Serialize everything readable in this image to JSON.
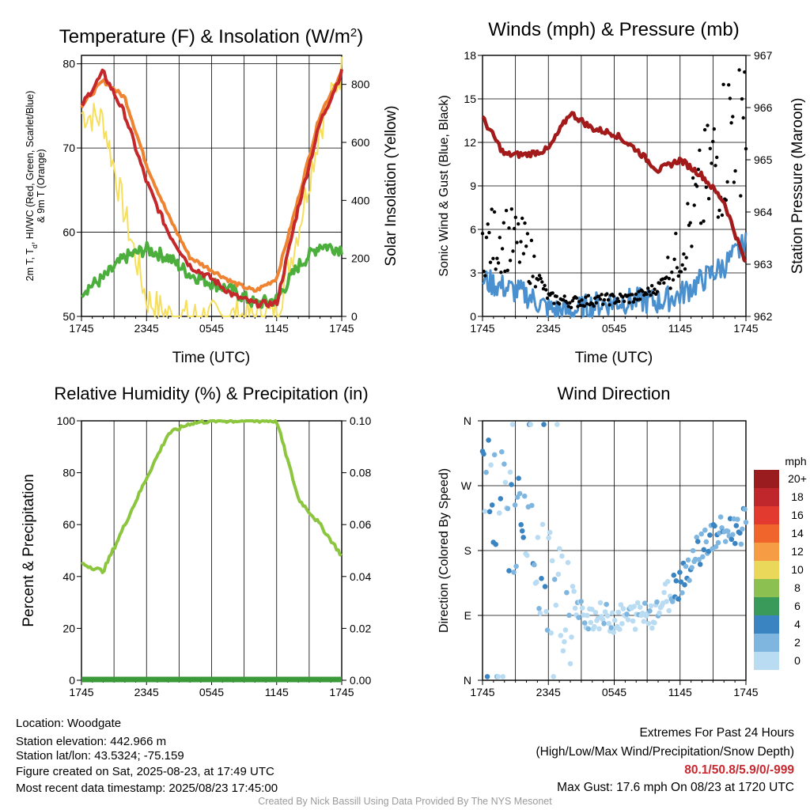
{
  "colors": {
    "red": "#c4282b",
    "green": "#2e8b2e",
    "lightgreen": "#4cae3c",
    "orange": "#ee8332",
    "yellow": "#f5df5d",
    "blue": "#4a90cf",
    "maroon": "#a31a1a",
    "black": "#000000",
    "precip": "#3a9a3a",
    "rh": "#8cc63f",
    "extremes": "#c8282e"
  },
  "charts": [
    {
      "id": "temperature",
      "title": "Temperature (F) & Insolation (W/m",
      "title_sup": "2",
      "title_tail": ")",
      "ylabel_left_line1": "2m T, T",
      "ylabel_left_sub1": "d",
      "ylabel_left_line1b": ", HI/WC (Red, Green, Scarlet/Blue)",
      "ylabel_left_line2": "& 9m T (Orange)",
      "ylabel_right": "Solar Insolation (Yellow)",
      "xlabel": "Time (UTC)",
      "xticks": [
        "1745",
        "2345",
        "0545",
        "1145",
        "1745"
      ],
      "yticks_left": [
        "50",
        "60",
        "70",
        "80"
      ],
      "yticks_right": [
        "0",
        "200",
        "400",
        "600",
        "800"
      ]
    },
    {
      "id": "winds",
      "title": "Winds (mph) & Pressure (mb)",
      "ylabel_left": "Sonic Wind & Gust (Blue, Black)",
      "ylabel_right": "Station Pressure (Maroon)",
      "xlabel": "Time (UTC)",
      "xticks": [
        "1745",
        "2345",
        "0545",
        "1145",
        "1745"
      ],
      "yticks_left": [
        "0",
        "3",
        "6",
        "9",
        "12",
        "15",
        "18"
      ],
      "yticks_right": [
        "962",
        "963",
        "964",
        "965",
        "966",
        "967"
      ]
    },
    {
      "id": "humidity",
      "title": "Relative Humidity (%) & Precipitation (in)",
      "ylabel_left": "Percent & Precipitation",
      "xticks": [
        "1745",
        "2345",
        "0545",
        "1145",
        "1745"
      ],
      "yticks_left": [
        "0",
        "20",
        "40",
        "60",
        "80",
        "100"
      ],
      "yticks_right": [
        "0.00",
        "0.02",
        "0.04",
        "0.06",
        "0.08",
        "0.10"
      ]
    },
    {
      "id": "direction",
      "title": "Wind Direction",
      "ylabel_left": "Direction (Colored By Speed)",
      "xticks": [
        "1745",
        "2345",
        "0545",
        "1145",
        "1745"
      ],
      "yticks_left": [
        "N",
        "E",
        "S",
        "W",
        "N"
      ],
      "legend_title": "mph",
      "legend_labels": [
        "20+",
        "18",
        "16",
        "14",
        "12",
        "10",
        "8",
        "6",
        "4",
        "2",
        "0"
      ],
      "legend_colors": [
        "#9b1c1f",
        "#c0272d",
        "#e23a2f",
        "#f0652b",
        "#f59c44",
        "#e9d85a",
        "#8cc152",
        "#3a9a5a",
        "#3a84c2",
        "#7fb6e0",
        "#b9dcf2"
      ]
    }
  ],
  "chart_data": [
    {
      "type": "line",
      "title": "Temperature (F) & Insolation (W/m2)",
      "x": [
        "1745",
        "1945",
        "2145",
        "2345",
        "0145",
        "0345",
        "0545",
        "0745",
        "0945",
        "1145",
        "1345",
        "1545",
        "1745"
      ],
      "ylim": [
        50,
        81
      ],
      "y2lim": [
        0,
        900
      ],
      "series": [
        {
          "color": "#c4282b",
          "axis": "left",
          "values": [
            75,
            79,
            74,
            66,
            60,
            56,
            54.5,
            52.5,
            51.5,
            51.5,
            63,
            73,
            79
          ]
        },
        {
          "color": "#ee8332",
          "axis": "left",
          "values": [
            75,
            78,
            76,
            68,
            62,
            57,
            55.5,
            54,
            53,
            54.5,
            64,
            74,
            79
          ]
        },
        {
          "color": "#2e8b2e",
          "axis": "left",
          "values": [
            53,
            54.5,
            57,
            58,
            57,
            55,
            54,
            53,
            51.5,
            52,
            56,
            58.5,
            58
          ]
        },
        {
          "color": "#f5df5d",
          "axis": "right",
          "values": [
            700,
            680,
            350,
            60,
            5,
            0,
            0,
            0,
            0,
            10,
            300,
            650,
            850
          ]
        }
      ]
    },
    {
      "type": "line",
      "title": "Winds (mph) & Pressure (mb)",
      "x": [
        "1745",
        "1945",
        "2145",
        "2345",
        "0145",
        "0345",
        "0545",
        "0745",
        "0945",
        "1145",
        "1345",
        "1545",
        "1745"
      ],
      "ylim": [
        0,
        18
      ],
      "y2lim": [
        962,
        967
      ],
      "series": [
        {
          "color": "#4a90cf",
          "axis": "left",
          "values": [
            2.5,
            2.0,
            1.5,
            0.5,
            0.3,
            0.8,
            1.0,
            1.1,
            1.0,
            1.5,
            2.5,
            3.5,
            5.0
          ]
        },
        {
          "color": "#000000",
          "axis": "left",
          "values": [
            5,
            5.5,
            4.5,
            1.3,
            1.0,
            1.1,
            1.2,
            1.3,
            2.0,
            4.5,
            8.5,
            12,
            16
          ]
        },
        {
          "color": "#a31a1a",
          "axis": "right",
          "values": [
            965.8,
            965.1,
            965.1,
            965.2,
            965.9,
            965.6,
            965.5,
            965.2,
            964.8,
            965.0,
            964.7,
            964.2,
            963.0
          ]
        }
      ]
    },
    {
      "type": "line",
      "title": "Relative Humidity (%) & Precipitation (in)",
      "x": [
        "1745",
        "1945",
        "2145",
        "2345",
        "0145",
        "0345",
        "0545",
        "0745",
        "0945",
        "1145",
        "1345",
        "1545",
        "1745"
      ],
      "ylim": [
        0,
        100
      ],
      "y2lim": [
        0,
        0.1
      ],
      "series": [
        {
          "color": "#8cc63f",
          "axis": "left",
          "values": [
            45,
            42,
            60,
            78,
            95,
            99,
            100,
            100,
            100,
            100,
            70,
            60,
            48
          ]
        },
        {
          "color": "#3a9a3a",
          "axis": "right",
          "values": [
            0,
            0,
            0,
            0,
            0,
            0,
            0,
            0,
            0,
            0,
            0,
            0,
            0
          ]
        }
      ]
    },
    {
      "type": "scatter",
      "title": "Wind Direction",
      "x": [
        "1745",
        "1945",
        "2145",
        "2345",
        "0145",
        "0345",
        "0545",
        "0745",
        "0945",
        "1145",
        "1345",
        "1545",
        "1745"
      ],
      "ylim": [
        "N",
        "N"
      ],
      "series": [
        {
          "values": [
            300,
            240,
            200,
            130,
            95,
            90,
            85,
            90,
            100,
            140,
            190,
            205,
            215
          ]
        }
      ]
    }
  ],
  "footer": {
    "location": "Location: Woodgate",
    "elevation": "Station elevation: 442.966 m",
    "latlon": "Station lat/lon: 43.5324; -75.159",
    "created": "Figure created on Sat, 2025-08-23, at 17:49 UTC",
    "recent": "Most recent data timestamp: 2025/08/23 17:45:00",
    "extremes_title": "Extremes For Past 24 Hours",
    "extremes_desc": "(High/Low/Max Wind/Precipitation/Snow Depth)",
    "extremes_values": "80.1/50.8/5.9/0/-999",
    "max_gust": "Max Gust: 17.6 mph On 08/23 at 1720 UTC",
    "credit": "Created By Nick Bassill Using Data Provided By The NYS Mesonet"
  }
}
